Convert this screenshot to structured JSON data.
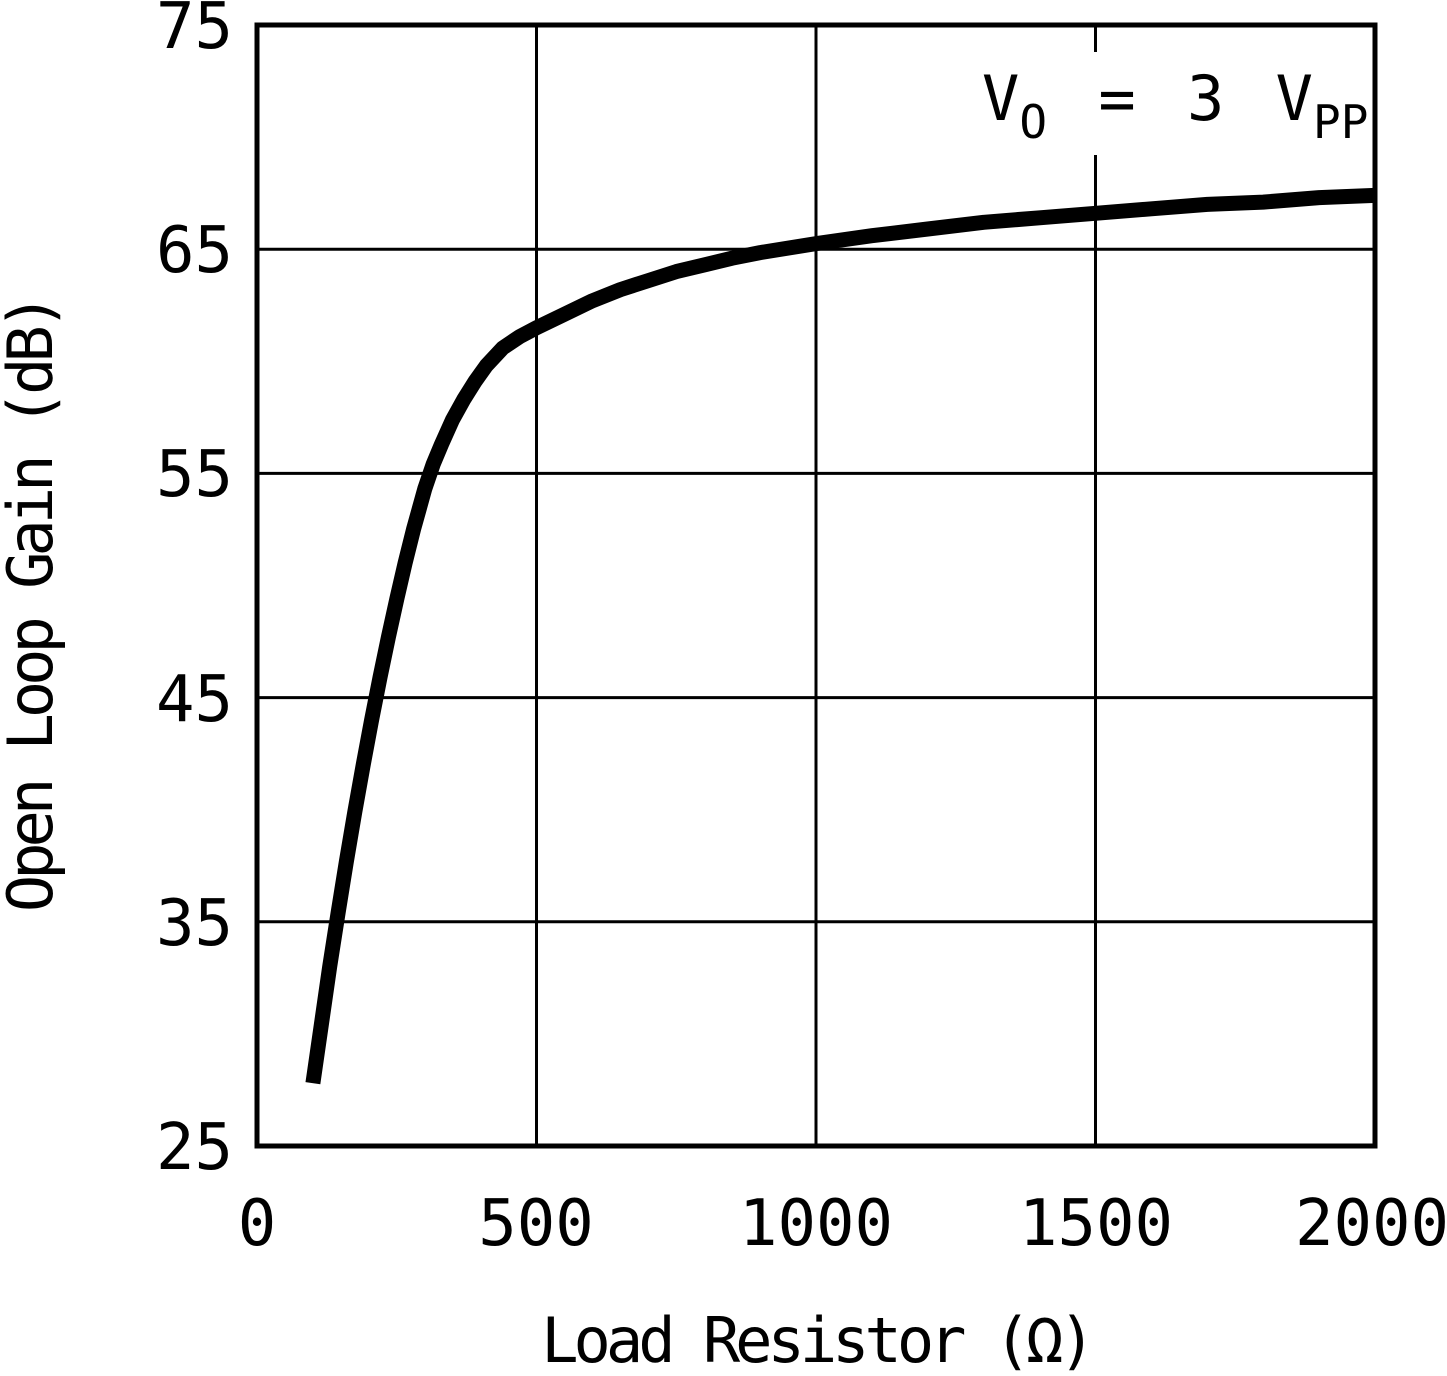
{
  "annotation": {
    "t1": "V",
    "t1_sub": "O",
    "t2": " = 3 V",
    "t2_sub": "PP"
  },
  "chart_data": {
    "type": "line",
    "title": "",
    "xlabel": "Load Resistor (Ω)",
    "ylabel": "Open Loop Gain (dB)",
    "annotation": "V_O = 3 V_PP",
    "xlim": [
      0,
      2000
    ],
    "ylim": [
      25,
      75
    ],
    "x_ticks": [
      0,
      500,
      1000,
      1500,
      2000
    ],
    "y_ticks": [
      25,
      35,
      45,
      55,
      65,
      75
    ],
    "x_tick_labels": [
      "0",
      "500",
      "1000",
      "1500",
      "2000"
    ],
    "y_tick_labels": [
      "25",
      "35",
      "45",
      "55",
      "65",
      "75"
    ],
    "grid": true,
    "legend": "none",
    "colors": {
      "line": "#000000",
      "grid": "#000000",
      "text": "#000000",
      "background": "#ffffff"
    },
    "series": [
      {
        "name": "open-loop-gain",
        "points": [
          [
            100,
            27.8
          ],
          [
            115,
            30.4
          ],
          [
            130,
            33.0
          ],
          [
            145,
            35.4
          ],
          [
            160,
            37.7
          ],
          [
            175,
            39.9
          ],
          [
            190,
            42.0
          ],
          [
            205,
            44.0
          ],
          [
            220,
            45.9
          ],
          [
            235,
            47.7
          ],
          [
            250,
            49.4
          ],
          [
            265,
            51.0
          ],
          [
            280,
            52.5
          ],
          [
            290,
            53.4
          ],
          [
            300,
            54.3
          ],
          [
            315,
            55.4
          ],
          [
            330,
            56.3
          ],
          [
            350,
            57.4
          ],
          [
            370,
            58.3
          ],
          [
            390,
            59.1
          ],
          [
            410,
            59.8
          ],
          [
            440,
            60.6
          ],
          [
            470,
            61.1
          ],
          [
            500,
            61.5
          ],
          [
            550,
            62.1
          ],
          [
            600,
            62.7
          ],
          [
            650,
            63.2
          ],
          [
            700,
            63.6
          ],
          [
            750,
            64.0
          ],
          [
            800,
            64.3
          ],
          [
            850,
            64.6
          ],
          [
            900,
            64.85
          ],
          [
            950,
            65.05
          ],
          [
            1000,
            65.25
          ],
          [
            1100,
            65.6
          ],
          [
            1200,
            65.9
          ],
          [
            1300,
            66.2
          ],
          [
            1400,
            66.4
          ],
          [
            1500,
            66.6
          ],
          [
            1600,
            66.8
          ],
          [
            1700,
            67.0
          ],
          [
            1800,
            67.1
          ],
          [
            1900,
            67.3
          ],
          [
            2000,
            67.4
          ]
        ]
      }
    ]
  }
}
